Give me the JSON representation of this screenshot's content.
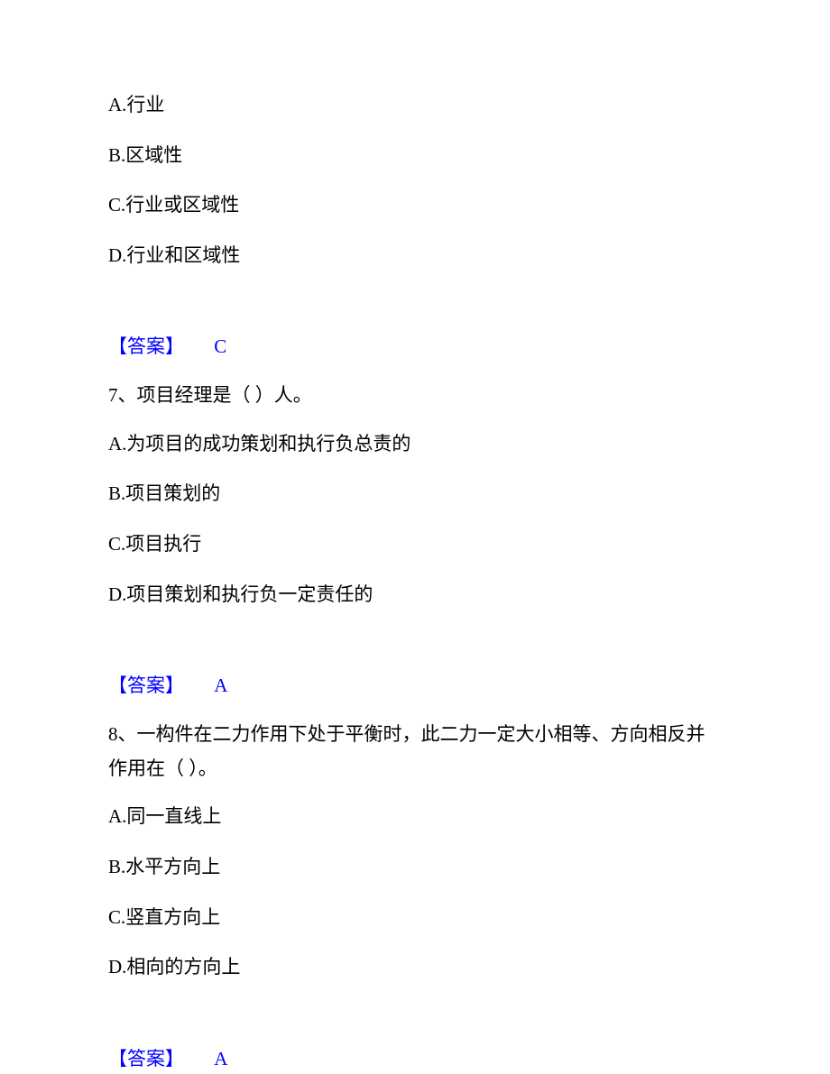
{
  "q6_options": {
    "a": "A.行业",
    "b": "B.区域性",
    "c": "C.行业或区域性",
    "d": "D.行业和区域性"
  },
  "q6_answer": {
    "label": "【答案】",
    "value": "C"
  },
  "q7": {
    "text": "7、项目经理是（ ）人。",
    "options": {
      "a": "A.为项目的成功策划和执行负总责的",
      "b": "B.项目策划的",
      "c": "C.项目执行",
      "d": "D.项目策划和执行负一定责任的"
    },
    "answer": {
      "label": "【答案】",
      "value": "A"
    }
  },
  "q8": {
    "text": "8、一构件在二力作用下处于平衡时，此二力一定大小相等、方向相反并作用在（ ）。",
    "options": {
      "a": "A.同一直线上",
      "b": "B.水平方向上",
      "c": "C.竖直方向上",
      "d": "D.相向的方向上"
    },
    "answer": {
      "label": "【答案】",
      "value": "A"
    }
  }
}
